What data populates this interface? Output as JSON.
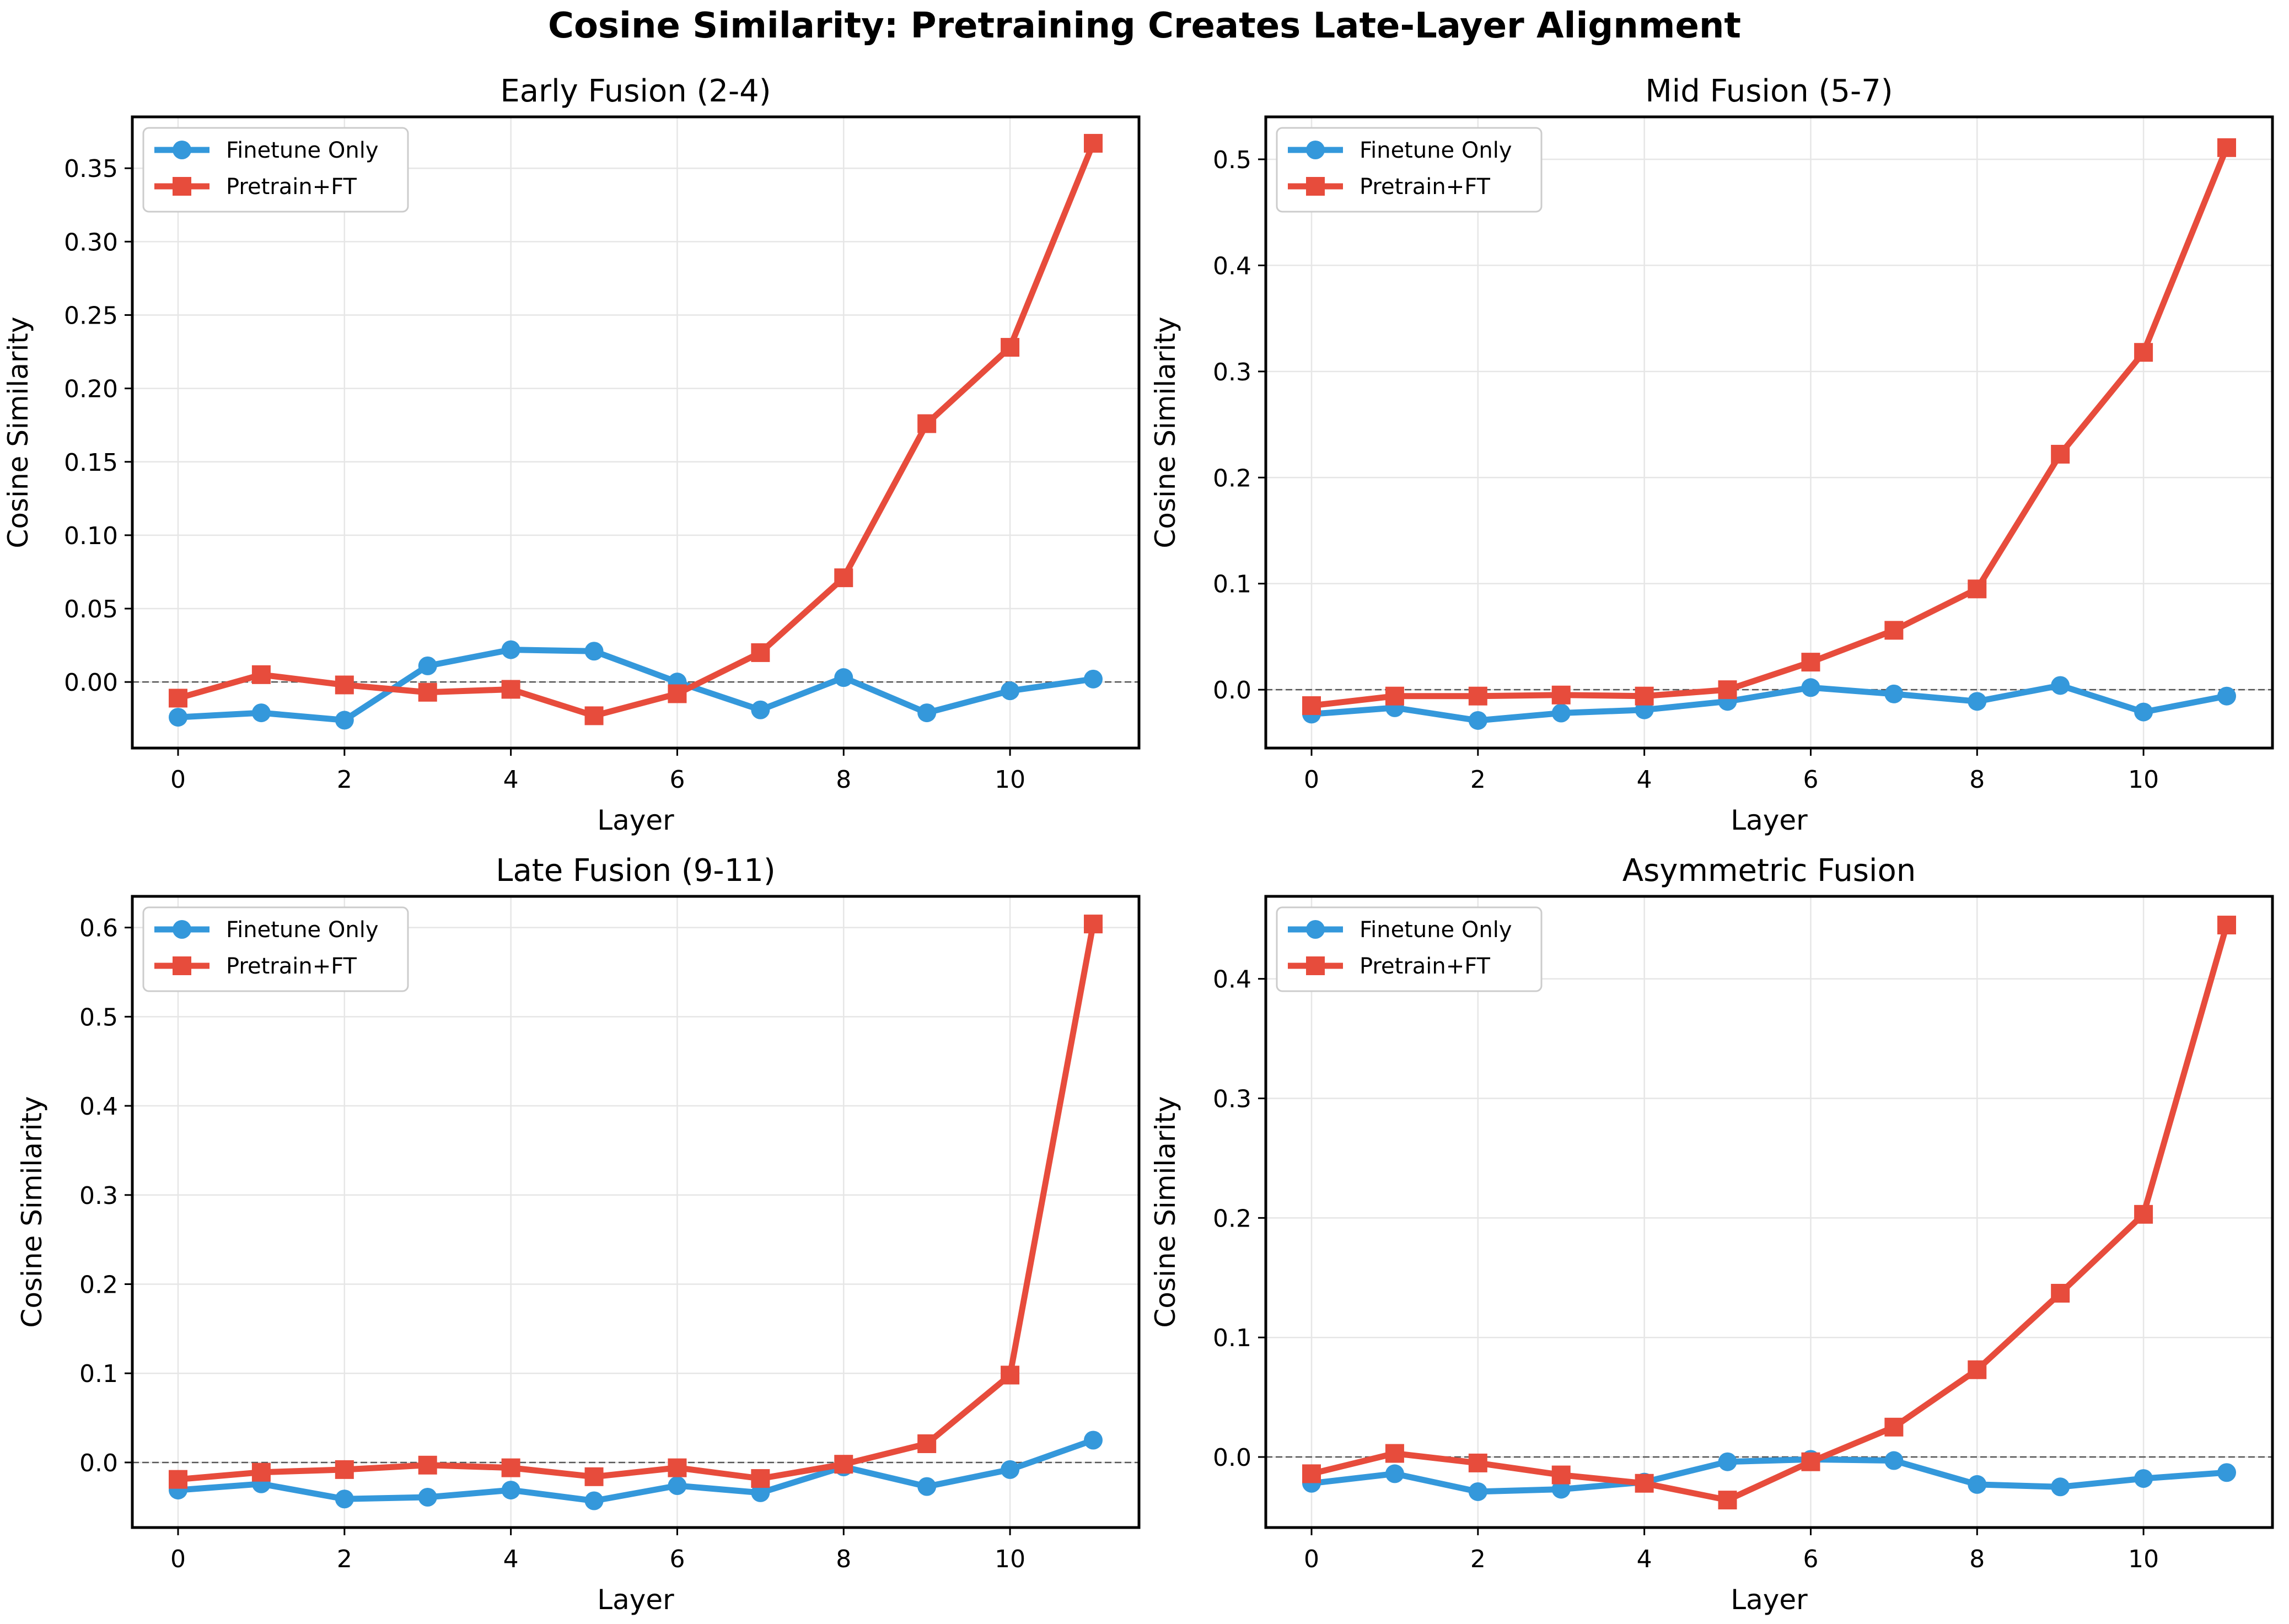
{
  "figure": {
    "title": "Cosine Similarity: Pretraining Creates Late-Layer Alignment",
    "colors": {
      "finetune": "#3498db",
      "pretrain": "#e74c3c"
    }
  },
  "chart_data": [
    {
      "type": "line",
      "title": "Early Fusion (2-4)",
      "xlabel": "Layer",
      "ylabel": "Cosine Similarity",
      "x": [
        0,
        1,
        2,
        3,
        4,
        5,
        6,
        7,
        8,
        9,
        10,
        11
      ],
      "xticks": [
        0,
        2,
        4,
        6,
        8,
        10
      ],
      "yticks": [
        0.0,
        0.05,
        0.1,
        0.15,
        0.2,
        0.25,
        0.3,
        0.35
      ],
      "ytick_labels": [
        "0.00",
        "0.05",
        "0.10",
        "0.15",
        "0.20",
        "0.25",
        "0.30",
        "0.35"
      ],
      "ylim": [
        -0.045,
        0.385
      ],
      "xlim": [
        -0.55,
        11.55
      ],
      "grid": true,
      "legend": "upper left",
      "zero_line": true,
      "series": [
        {
          "name": "Finetune Only",
          "marker": "circle",
          "color": "#3498db",
          "values": [
            -0.024,
            -0.021,
            -0.026,
            0.011,
            0.022,
            0.021,
            0.0,
            -0.019,
            0.003,
            -0.021,
            -0.006,
            0.002
          ]
        },
        {
          "name": "Pretrain+FT",
          "marker": "square",
          "color": "#e74c3c",
          "values": [
            -0.011,
            0.005,
            -0.002,
            -0.007,
            -0.005,
            -0.023,
            -0.008,
            0.02,
            0.071,
            0.176,
            0.228,
            0.367
          ]
        }
      ]
    },
    {
      "type": "line",
      "title": "Mid Fusion (5-7)",
      "xlabel": "Layer",
      "ylabel": "Cosine Similarity",
      "x": [
        0,
        1,
        2,
        3,
        4,
        5,
        6,
        7,
        8,
        9,
        10,
        11
      ],
      "xticks": [
        0,
        2,
        4,
        6,
        8,
        10
      ],
      "yticks": [
        0.0,
        0.1,
        0.2,
        0.3,
        0.4,
        0.5
      ],
      "ytick_labels": [
        "0.0",
        "0.1",
        "0.2",
        "0.3",
        "0.4",
        "0.5"
      ],
      "ylim": [
        -0.055,
        0.54
      ],
      "xlim": [
        -0.55,
        11.55
      ],
      "grid": true,
      "legend": "upper left",
      "zero_line": true,
      "series": [
        {
          "name": "Finetune Only",
          "marker": "circle",
          "color": "#3498db",
          "values": [
            -0.023,
            -0.017,
            -0.029,
            -0.022,
            -0.019,
            -0.011,
            0.002,
            -0.004,
            -0.011,
            0.004,
            -0.021,
            -0.006
          ]
        },
        {
          "name": "Pretrain+FT",
          "marker": "square",
          "color": "#e74c3c",
          "values": [
            -0.015,
            -0.006,
            -0.006,
            -0.005,
            -0.006,
            0.0,
            0.026,
            0.056,
            0.095,
            0.222,
            0.318,
            0.511
          ]
        }
      ]
    },
    {
      "type": "line",
      "title": "Late Fusion (9-11)",
      "xlabel": "Layer",
      "ylabel": "Cosine Similarity",
      "x": [
        0,
        1,
        2,
        3,
        4,
        5,
        6,
        7,
        8,
        9,
        10,
        11
      ],
      "xticks": [
        0,
        2,
        4,
        6,
        8,
        10
      ],
      "yticks": [
        0.0,
        0.1,
        0.2,
        0.3,
        0.4,
        0.5,
        0.6
      ],
      "ytick_labels": [
        "0.0",
        "0.1",
        "0.2",
        "0.3",
        "0.4",
        "0.5",
        "0.6"
      ],
      "ylim": [
        -0.073,
        0.635
      ],
      "xlim": [
        -0.55,
        11.55
      ],
      "grid": true,
      "legend": "upper left",
      "zero_line": true,
      "series": [
        {
          "name": "Finetune Only",
          "marker": "circle",
          "color": "#3498db",
          "values": [
            -0.031,
            -0.024,
            -0.041,
            -0.039,
            -0.031,
            -0.043,
            -0.026,
            -0.034,
            -0.005,
            -0.027,
            -0.008,
            0.025
          ]
        },
        {
          "name": "Pretrain+FT",
          "marker": "square",
          "color": "#e74c3c",
          "values": [
            -0.019,
            -0.011,
            -0.008,
            -0.003,
            -0.006,
            -0.016,
            -0.006,
            -0.018,
            -0.002,
            0.021,
            0.098,
            0.604
          ]
        }
      ]
    },
    {
      "type": "line",
      "title": "Asymmetric Fusion",
      "xlabel": "Layer",
      "ylabel": "Cosine Similarity",
      "x": [
        0,
        1,
        2,
        3,
        4,
        5,
        6,
        7,
        8,
        9,
        10,
        11
      ],
      "xticks": [
        0,
        2,
        4,
        6,
        8,
        10
      ],
      "yticks": [
        0.0,
        0.1,
        0.2,
        0.3,
        0.4
      ],
      "ytick_labels": [
        "0.0",
        "0.1",
        "0.2",
        "0.3",
        "0.4"
      ],
      "ylim": [
        -0.059,
        0.469
      ],
      "xlim": [
        -0.55,
        11.55
      ],
      "grid": true,
      "legend": "upper left",
      "zero_line": true,
      "series": [
        {
          "name": "Finetune Only",
          "marker": "circle",
          "color": "#3498db",
          "values": [
            -0.022,
            -0.014,
            -0.029,
            -0.027,
            -0.021,
            -0.004,
            -0.002,
            -0.003,
            -0.023,
            -0.025,
            -0.018,
            -0.013
          ]
        },
        {
          "name": "Pretrain+FT",
          "marker": "square",
          "color": "#e74c3c",
          "values": [
            -0.014,
            0.003,
            -0.005,
            -0.015,
            -0.022,
            -0.036,
            -0.004,
            0.025,
            0.073,
            0.137,
            0.203,
            0.445
          ]
        }
      ]
    }
  ]
}
